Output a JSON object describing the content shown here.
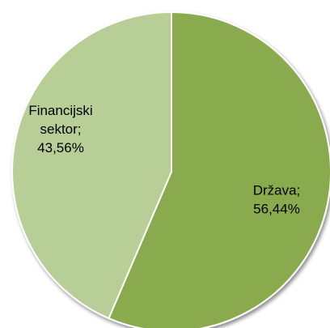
{
  "chart_data": {
    "type": "pie",
    "title": "",
    "slices": [
      {
        "label": "Država",
        "value": 56.44,
        "label_lines": [
          "Država;",
          "56,44%"
        ],
        "color": "#8aab4d"
      },
      {
        "label": "Financijski sektor",
        "value": 43.56,
        "label_lines": [
          "Financijski",
          "sektor;",
          "43,56%"
        ],
        "color": "#b7ce96"
      }
    ],
    "start": "12 o'clock",
    "direction": "clockwise",
    "legend": "none",
    "slice_border_color": "#ffffff"
  }
}
